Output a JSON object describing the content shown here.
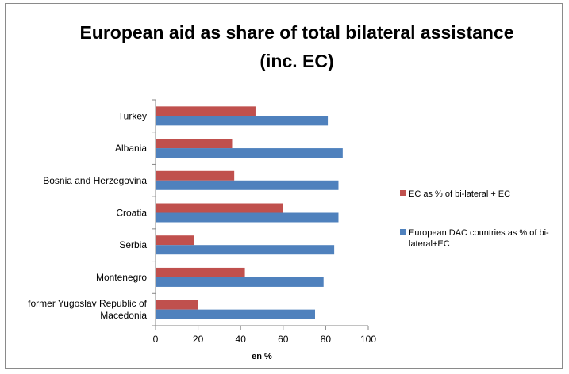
{
  "chart_data": {
    "type": "bar",
    "orientation": "horizontal",
    "title_lines": [
      "European aid as share of total bilateral assistance",
      "(inc. EC)"
    ],
    "categories": [
      "Turkey",
      "Albania",
      "Bosnia and Herzegovina",
      "Croatia",
      "Serbia",
      "Montenegro",
      "former Yugoslav Republic of Macedonia"
    ],
    "category_label_lines": [
      [
        "Turkey"
      ],
      [
        "Albania"
      ],
      [
        "Bosnia and Herzegovina"
      ],
      [
        "Croatia"
      ],
      [
        "Serbia"
      ],
      [
        "Montenegro"
      ],
      [
        "former Yugoslav Republic of",
        "Macedonia"
      ]
    ],
    "series": [
      {
        "name": "EC as % of bi-lateral + EC",
        "legend_lines": [
          "EC as % of bi-lateral + EC"
        ],
        "color": "#c0504d",
        "values": [
          47,
          36,
          37,
          60,
          18,
          42,
          20
        ]
      },
      {
        "name": "European DAC countries as % of bi-lateral+EC",
        "legend_lines": [
          "European DAC countries as % of bi-",
          "lateral+EC"
        ],
        "color": "#4f81bd",
        "values": [
          81,
          88,
          86,
          86,
          84,
          79,
          75
        ]
      }
    ],
    "xlabel": "en %",
    "xlim": [
      0,
      100
    ],
    "xticks": [
      0,
      20,
      40,
      60,
      80,
      100
    ],
    "grid": false,
    "legend_position": "right"
  }
}
